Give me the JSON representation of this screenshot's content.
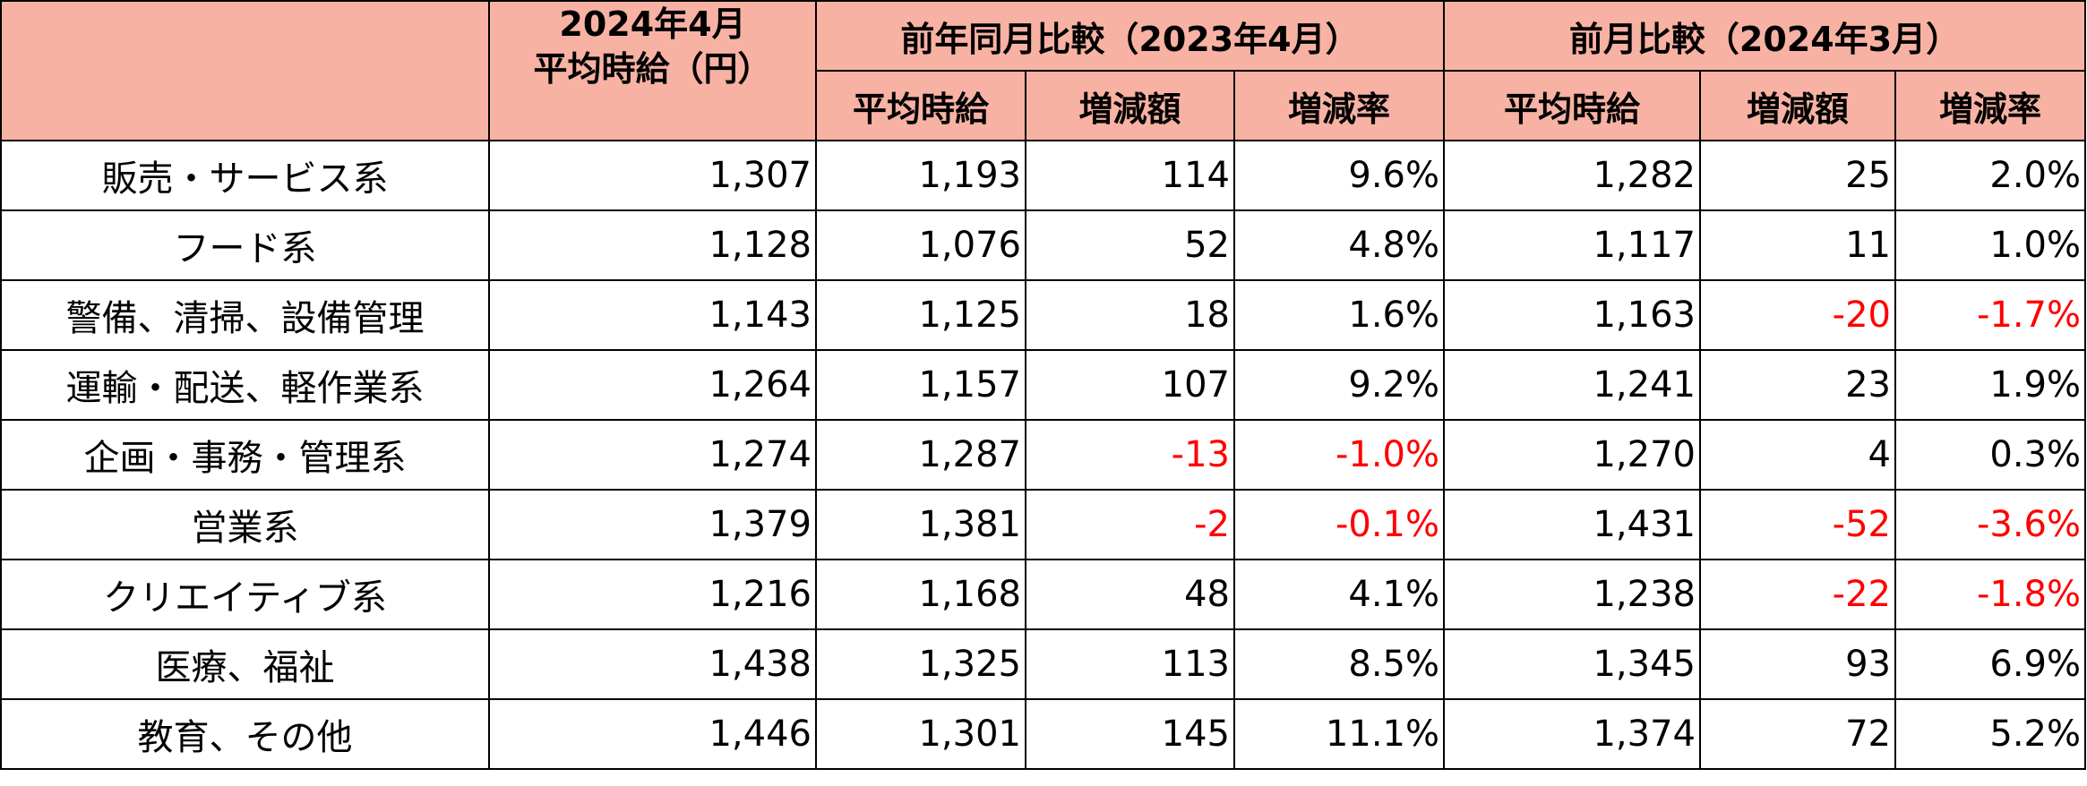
{
  "header": {
    "current_line1": "2024年4月",
    "current_line2": "平均時給（円）",
    "yoy_title": "前年同月比較（2023年4月）",
    "mom_title": "前月比較（2024年3月）",
    "col_avg": "平均時給",
    "col_diff": "増減額",
    "col_rate": "増減率"
  },
  "rows": [
    {
      "category": "販売・サービス系",
      "current": "1,307",
      "yoy_avg": "1,193",
      "yoy_diff": "114",
      "yoy_rate": "9.6%",
      "mom_avg": "1,282",
      "mom_diff": "25",
      "mom_rate": "2.0%"
    },
    {
      "category": "フード系",
      "current": "1,128",
      "yoy_avg": "1,076",
      "yoy_diff": "52",
      "yoy_rate": "4.8%",
      "mom_avg": "1,117",
      "mom_diff": "11",
      "mom_rate": "1.0%"
    },
    {
      "category": "警備、清掃、設備管理",
      "current": "1,143",
      "yoy_avg": "1,125",
      "yoy_diff": "18",
      "yoy_rate": "1.6%",
      "mom_avg": "1,163",
      "mom_diff": "-20",
      "mom_rate": "-1.7%"
    },
    {
      "category": "運輸・配送、軽作業系",
      "current": "1,264",
      "yoy_avg": "1,157",
      "yoy_diff": "107",
      "yoy_rate": "9.2%",
      "mom_avg": "1,241",
      "mom_diff": "23",
      "mom_rate": "1.9%"
    },
    {
      "category": "企画・事務・管理系",
      "current": "1,274",
      "yoy_avg": "1,287",
      "yoy_diff": "-13",
      "yoy_rate": "-1.0%",
      "mom_avg": "1,270",
      "mom_diff": "4",
      "mom_rate": "0.3%"
    },
    {
      "category": "営業系",
      "current": "1,379",
      "yoy_avg": "1,381",
      "yoy_diff": "-2",
      "yoy_rate": "-0.1%",
      "mom_avg": "1,431",
      "mom_diff": "-52",
      "mom_rate": "-3.6%"
    },
    {
      "category": "クリエイティブ系",
      "current": "1,216",
      "yoy_avg": "1,168",
      "yoy_diff": "48",
      "yoy_rate": "4.1%",
      "mom_avg": "1,238",
      "mom_diff": "-22",
      "mom_rate": "-1.8%"
    },
    {
      "category": "医療、福祉",
      "current": "1,438",
      "yoy_avg": "1,325",
      "yoy_diff": "113",
      "yoy_rate": "8.5%",
      "mom_avg": "1,345",
      "mom_diff": "93",
      "mom_rate": "6.9%"
    },
    {
      "category": "教育、その他",
      "current": "1,446",
      "yoy_avg": "1,301",
      "yoy_diff": "145",
      "yoy_rate": "11.1%",
      "mom_avg": "1,374",
      "mom_diff": "72",
      "mom_rate": "5.2%"
    }
  ],
  "colors": {
    "header_bg": "#f8b2a3",
    "negative_text": "#ff0000",
    "border": "#000000"
  }
}
